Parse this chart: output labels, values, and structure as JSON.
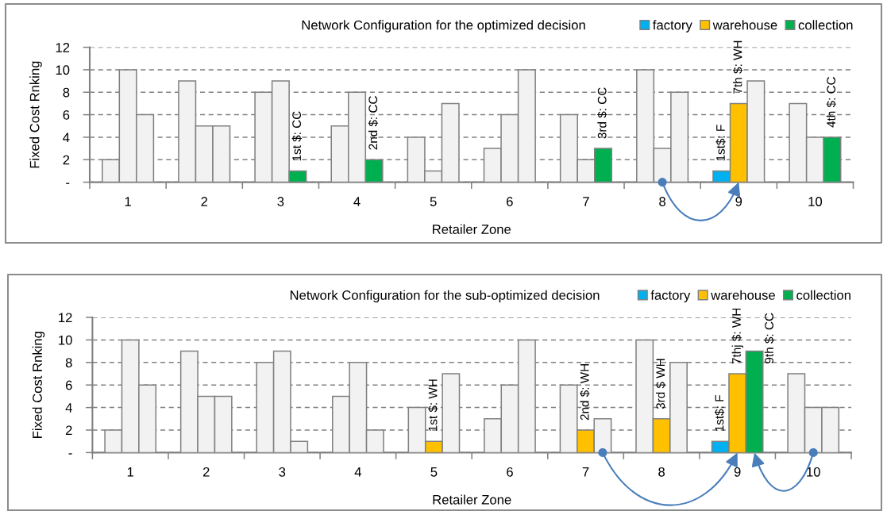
{
  "chart_data": [
    {
      "type": "bar",
      "title": "Network Configuration for the optimized decision",
      "xlabel": "Retailer Zone",
      "ylabel": "Fixed Cost Rnking",
      "categories": [
        "1",
        "2",
        "3",
        "4",
        "5",
        "6",
        "7",
        "8",
        "9",
        "10"
      ],
      "series": [
        {
          "name": "factory",
          "color": "#00b0f0",
          "values": [
            2,
            9,
            8,
            5,
            4,
            3,
            6,
            10,
            1,
            7
          ],
          "colors": [
            "#f2f2f2",
            "#f2f2f2",
            "#f2f2f2",
            "#f2f2f2",
            "#f2f2f2",
            "#f2f2f2",
            "#f2f2f2",
            "#f2f2f2",
            "#00b0f0",
            "#f2f2f2"
          ]
        },
        {
          "name": "warehouse",
          "color": "#ffc000",
          "values": [
            10,
            5,
            9,
            8,
            1,
            6,
            2,
            3,
            7,
            4
          ],
          "colors": [
            "#f2f2f2",
            "#f2f2f2",
            "#f2f2f2",
            "#f2f2f2",
            "#f2f2f2",
            "#f2f2f2",
            "#f2f2f2",
            "#f2f2f2",
            "#ffc000",
            "#f2f2f2"
          ]
        },
        {
          "name": "collection",
          "color": "#00b050",
          "values": [
            6,
            5,
            1,
            2,
            7,
            10,
            3,
            8,
            9,
            4
          ],
          "colors": [
            "#f2f2f2",
            "#f2f2f2",
            "#00b050",
            "#00b050",
            "#f2f2f2",
            "#f2f2f2",
            "#00b050",
            "#f2f2f2",
            "#f2f2f2",
            "#00b050"
          ]
        }
      ],
      "ylim": [
        0,
        12
      ],
      "yticks": [
        {
          "value": 0,
          "label": "-"
        },
        2,
        4,
        6,
        8,
        10,
        12
      ],
      "grid": "y",
      "legend": "top right",
      "annotations": [
        "1st $: CC",
        "2nd $: CC",
        "3rd $: CC",
        "1st$: F",
        {
          "text": "7th $: WH",
          "x": "9",
          "y": 7
        },
        {
          "text": "4th $: CC",
          "x": "10",
          "y": 4
        }
      ]
    },
    {
      "type": "bar",
      "title": "Network Configuration for the sub-optimized decision",
      "xlabel": "Retailer Zone",
      "ylabel": "Fixed Cost Rnking",
      "categories": [
        "1",
        "2",
        "3",
        "4",
        "5",
        "6",
        "7",
        "8",
        "9",
        "10"
      ],
      "series": [
        {
          "name": "factory",
          "color": "#00b0f0",
          "values": [
            2,
            9,
            8,
            5,
            4,
            3,
            6,
            10,
            1,
            7
          ],
          "colors": [
            "#f2f2f2",
            "#f2f2f2",
            "#f2f2f2",
            "#f2f2f2",
            "#f2f2f2",
            "#f2f2f2",
            "#f2f2f2",
            "#f2f2f2",
            "#00b0f0",
            "#f2f2f2"
          ]
        },
        {
          "name": "warehouse",
          "color": "#ffc000",
          "values": [
            10,
            5,
            9,
            8,
            1,
            6,
            2,
            3,
            7,
            4
          ],
          "colors": [
            "#f2f2f2",
            "#f2f2f2",
            "#f2f2f2",
            "#f2f2f2",
            "#ffc000",
            "#f2f2f2",
            "#ffc000",
            "#ffc000",
            "#ffc000",
            "#f2f2f2"
          ]
        },
        {
          "name": "collection",
          "color": "#00b050",
          "values": [
            6,
            5,
            1,
            2,
            7,
            10,
            3,
            8,
            9,
            4
          ],
          "colors": [
            "#f2f2f2",
            "#f2f2f2",
            "#f2f2f2",
            "#f2f2f2",
            "#f2f2f2",
            "#f2f2f2",
            "#f2f2f2",
            "#f2f2f2",
            "#00b050",
            "#f2f2f2"
          ]
        }
      ],
      "ylim": [
        0,
        12
      ],
      "yticks": [
        {
          "value": 0,
          "label": "-"
        },
        2,
        4,
        6,
        8,
        10,
        12
      ],
      "grid": "y",
      "legend": "top right",
      "annotations": [
        {
          "text": "1st $: WH",
          "x": "5",
          "y": 1
        },
        {
          "text": "2nd $: WH",
          "x": "7",
          "y": 2
        },
        {
          "text": "3rd $ WH",
          "x": "8",
          "y": 3
        },
        "1st$: F",
        {
          "text": "7thj $: WH",
          "x": "9",
          "y": 7
        },
        "9th $: CC"
      ]
    }
  ]
}
